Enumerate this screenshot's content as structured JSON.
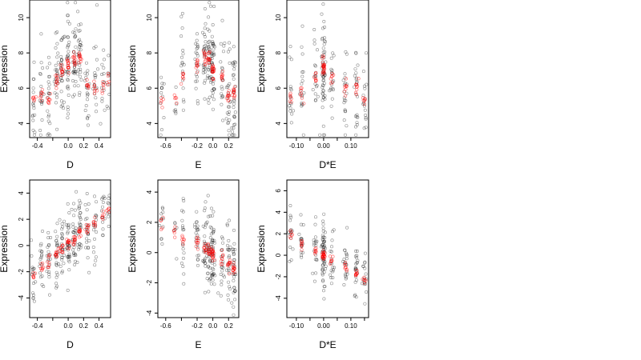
{
  "figure": {
    "panels": [
      {
        "id": "p1",
        "xlabel": "D",
        "ylabel": "Expression",
        "xlim": [
          -0.5,
          0.55
        ],
        "ylim": [
          3.2,
          11.0
        ],
        "xticks": [
          -0.4,
          -0.2,
          0.0,
          0.2,
          0.4
        ],
        "yticks": [
          4,
          6,
          8,
          10
        ],
        "xticklabels": [
          "-0.4",
          "",
          "0.0",
          "0.2",
          "0.4"
        ],
        "yticklabels": [
          "4",
          "6",
          "8",
          "10"
        ]
      },
      {
        "id": "p2",
        "xlabel": "E",
        "ylabel": "Expression",
        "xlim": [
          -0.7,
          0.33
        ],
        "ylim": [
          3.2,
          11.0
        ],
        "xticks": [
          -0.6,
          -0.4,
          -0.2,
          0.0,
          0.2
        ],
        "yticks": [
          4,
          6,
          8,
          10
        ],
        "xticklabels": [
          "-0.6",
          "",
          "-0.2",
          "0.0",
          "0.2"
        ],
        "yticklabels": [
          "4",
          "6",
          "8",
          "10"
        ]
      },
      {
        "id": "p3",
        "xlabel": "D*E",
        "ylabel": "Expression",
        "xlim": [
          -0.135,
          0.165
        ],
        "ylim": [
          3.2,
          11.0
        ],
        "xticks": [
          -0.1,
          -0.05,
          0.0,
          0.05,
          0.1
        ],
        "yticks": [
          4,
          6,
          8,
          10
        ],
        "xticklabels": [
          "-0.10",
          "",
          "0.00",
          "",
          "0.10"
        ],
        "yticklabels": [
          "4",
          "6",
          "8",
          "10"
        ]
      },
      {
        "id": "p4",
        "xlabel": "D",
        "ylabel": "Expression",
        "xlim": [
          -0.5,
          0.55
        ],
        "ylim": [
          -5.5,
          5.0
        ],
        "xticks": [
          -0.4,
          -0.2,
          0.0,
          0.2,
          0.4
        ],
        "yticks": [
          -4,
          -2,
          0,
          2,
          4
        ],
        "xticklabels": [
          "-0.4",
          "",
          "0.0",
          "0.2",
          "0.4"
        ],
        "yticklabels": [
          "-4",
          "-2",
          "0",
          "2",
          "4"
        ]
      },
      {
        "id": "p5",
        "xlabel": "E",
        "ylabel": "Expression",
        "xlim": [
          -0.7,
          0.33
        ],
        "ylim": [
          -4.3,
          4.8
        ],
        "xticks": [
          -0.6,
          -0.4,
          -0.2,
          0.0,
          0.2
        ],
        "yticks": [
          -4,
          -2,
          0,
          2,
          4
        ],
        "xticklabels": [
          "-0.6",
          "",
          "-0.2",
          "0.0",
          "0.2"
        ],
        "yticklabels": [
          "-4",
          "-2",
          "0",
          "2",
          "4"
        ]
      },
      {
        "id": "p6",
        "xlabel": "D*E",
        "ylabel": "Expression",
        "xlim": [
          -0.135,
          0.165
        ],
        "ylim": [
          -5.8,
          7.0
        ],
        "xticks": [
          -0.1,
          -0.05,
          0.0,
          0.05,
          0.1,
          0.15
        ],
        "yticks": [
          -4,
          -2,
          0,
          2,
          4,
          6
        ],
        "xticklabels": [
          "-0.10",
          "",
          "0.00",
          "",
          "0.10",
          ""
        ],
        "yticklabels": [
          "-4",
          "-2",
          "0",
          "2",
          "4",
          "6"
        ]
      }
    ]
  },
  "chart_data": [
    {
      "type": "scatter",
      "panel": "p1",
      "xlabel": "D",
      "ylabel": "Expression",
      "xlim": [
        -0.5,
        0.55
      ],
      "ylim": [
        3.2,
        11.0
      ],
      "colors": {
        "observed": "#000000",
        "fitted": "#ff0000"
      },
      "groups": [
        {
          "x": -0.45,
          "fit": 5.4,
          "sd": 1.3,
          "n": 16
        },
        {
          "x": -0.35,
          "fit": 5.5,
          "sd": 1.4,
          "n": 18
        },
        {
          "x": -0.25,
          "fit": 5.4,
          "sd": 1.5,
          "n": 20
        },
        {
          "x": -0.15,
          "fit": 6.5,
          "sd": 1.3,
          "n": 26
        },
        {
          "x": -0.08,
          "fit": 7.0,
          "sd": 1.3,
          "n": 28
        },
        {
          "x": 0.0,
          "fit": 7.3,
          "sd": 1.4,
          "n": 34
        },
        {
          "x": 0.08,
          "fit": 7.7,
          "sd": 1.3,
          "n": 30
        },
        {
          "x": 0.15,
          "fit": 7.8,
          "sd": 1.2,
          "n": 28
        },
        {
          "x": 0.25,
          "fit": 6.1,
          "sd": 1.3,
          "n": 20
        },
        {
          "x": 0.35,
          "fit": 6.0,
          "sd": 1.3,
          "n": 18
        },
        {
          "x": 0.45,
          "fit": 6.0,
          "sd": 1.2,
          "n": 14
        },
        {
          "x": 0.52,
          "fit": 6.5,
          "sd": 1.0,
          "n": 8
        }
      ]
    },
    {
      "type": "scatter",
      "panel": "p2",
      "xlabel": "E",
      "ylabel": "Expression",
      "xlim": [
        -0.7,
        0.33
      ],
      "ylim": [
        3.2,
        11.0
      ],
      "colors": {
        "observed": "#000000",
        "fitted": "#ff0000"
      },
      "groups": [
        {
          "x": -0.65,
          "fit": 5.2,
          "sd": 1.2,
          "n": 12
        },
        {
          "x": -0.48,
          "fit": 5.5,
          "sd": 1.0,
          "n": 6
        },
        {
          "x": -0.38,
          "fit": 6.8,
          "sd": 1.4,
          "n": 18
        },
        {
          "x": -0.2,
          "fit": 7.4,
          "sd": 1.2,
          "n": 22
        },
        {
          "x": -0.1,
          "fit": 7.8,
          "sd": 1.2,
          "n": 28
        },
        {
          "x": -0.05,
          "fit": 7.6,
          "sd": 1.3,
          "n": 30
        },
        {
          "x": 0.0,
          "fit": 7.0,
          "sd": 1.3,
          "n": 46
        },
        {
          "x": 0.12,
          "fit": 6.8,
          "sd": 1.3,
          "n": 20
        },
        {
          "x": 0.2,
          "fit": 5.6,
          "sd": 1.5,
          "n": 24
        },
        {
          "x": 0.27,
          "fit": 5.8,
          "sd": 1.4,
          "n": 30
        }
      ]
    },
    {
      "type": "scatter",
      "panel": "p3",
      "xlabel": "D*E",
      "ylabel": "Expression",
      "xlim": [
        -0.135,
        0.165
      ],
      "ylim": [
        3.2,
        11.0
      ],
      "colors": {
        "observed": "#000000",
        "fitted": "#ff0000"
      },
      "groups": [
        {
          "x": -0.12,
          "fit": 5.4,
          "sd": 1.2,
          "n": 16
        },
        {
          "x": -0.08,
          "fit": 5.5,
          "sd": 1.3,
          "n": 18
        },
        {
          "x": -0.03,
          "fit": 6.5,
          "sd": 1.3,
          "n": 18
        },
        {
          "x": 0.0,
          "fit": 7.3,
          "sd": 1.4,
          "n": 56
        },
        {
          "x": 0.03,
          "fit": 6.5,
          "sd": 1.3,
          "n": 18
        },
        {
          "x": 0.08,
          "fit": 6.0,
          "sd": 1.3,
          "n": 20
        },
        {
          "x": 0.12,
          "fit": 6.0,
          "sd": 1.4,
          "n": 22
        },
        {
          "x": 0.15,
          "fit": 5.3,
          "sd": 1.3,
          "n": 16
        }
      ]
    },
    {
      "type": "scatter",
      "panel": "p4",
      "xlabel": "D",
      "ylabel": "Expression",
      "xlim": [
        -0.5,
        0.55
      ],
      "ylim": [
        -5.5,
        5.0
      ],
      "colors": {
        "observed": "#000000",
        "fitted": "#ff0000"
      },
      "groups": [
        {
          "x": -0.45,
          "fit": -2.3,
          "sd": 1.3,
          "n": 16
        },
        {
          "x": -0.35,
          "fit": -1.6,
          "sd": 1.3,
          "n": 18
        },
        {
          "x": -0.25,
          "fit": -1.2,
          "sd": 1.3,
          "n": 20
        },
        {
          "x": -0.15,
          "fit": -0.7,
          "sd": 1.3,
          "n": 24
        },
        {
          "x": -0.08,
          "fit": -0.3,
          "sd": 1.3,
          "n": 26
        },
        {
          "x": 0.0,
          "fit": 0.1,
          "sd": 1.4,
          "n": 30
        },
        {
          "x": 0.08,
          "fit": 0.5,
          "sd": 1.3,
          "n": 28
        },
        {
          "x": 0.15,
          "fit": 0.9,
          "sd": 1.3,
          "n": 26
        },
        {
          "x": 0.25,
          "fit": 1.3,
          "sd": 1.3,
          "n": 22
        },
        {
          "x": 0.35,
          "fit": 1.8,
          "sd": 1.3,
          "n": 18
        },
        {
          "x": 0.45,
          "fit": 2.3,
          "sd": 1.3,
          "n": 14
        },
        {
          "x": 0.52,
          "fit": 2.7,
          "sd": 1.1,
          "n": 8
        }
      ]
    },
    {
      "type": "scatter",
      "panel": "p5",
      "xlabel": "E",
      "ylabel": "Expression",
      "xlim": [
        -0.7,
        0.33
      ],
      "ylim": [
        -4.3,
        4.8
      ],
      "colors": {
        "observed": "#000000",
        "fitted": "#ff0000"
      },
      "groups": [
        {
          "x": -0.65,
          "fit": 1.9,
          "sd": 1.2,
          "n": 12
        },
        {
          "x": -0.48,
          "fit": 1.4,
          "sd": 1.0,
          "n": 6
        },
        {
          "x": -0.38,
          "fit": 1.0,
          "sd": 1.3,
          "n": 18
        },
        {
          "x": -0.2,
          "fit": 0.6,
          "sd": 1.3,
          "n": 22
        },
        {
          "x": -0.1,
          "fit": 0.3,
          "sd": 1.3,
          "n": 26
        },
        {
          "x": -0.05,
          "fit": 0.1,
          "sd": 1.3,
          "n": 28
        },
        {
          "x": 0.0,
          "fit": -0.1,
          "sd": 1.4,
          "n": 46
        },
        {
          "x": 0.12,
          "fit": -0.4,
          "sd": 1.3,
          "n": 20
        },
        {
          "x": 0.2,
          "fit": -0.7,
          "sd": 1.4,
          "n": 24
        },
        {
          "x": 0.27,
          "fit": -1.0,
          "sd": 1.4,
          "n": 30
        }
      ]
    },
    {
      "type": "scatter",
      "panel": "p6",
      "xlabel": "D*E",
      "ylabel": "Expression",
      "xlim": [
        -0.135,
        0.165
      ],
      "ylim": [
        -5.8,
        7.0
      ],
      "colors": {
        "observed": "#000000",
        "fitted": "#ff0000"
      },
      "groups": [
        {
          "x": -0.12,
          "fit": 2.0,
          "sd": 1.2,
          "n": 16
        },
        {
          "x": -0.08,
          "fit": 1.1,
          "sd": 1.4,
          "n": 18
        },
        {
          "x": -0.03,
          "fit": 0.4,
          "sd": 1.3,
          "n": 18
        },
        {
          "x": 0.0,
          "fit": 0.0,
          "sd": 1.6,
          "n": 56
        },
        {
          "x": 0.03,
          "fit": -0.5,
          "sd": 1.3,
          "n": 18
        },
        {
          "x": 0.08,
          "fit": -1.2,
          "sd": 1.4,
          "n": 20
        },
        {
          "x": 0.12,
          "fit": -1.7,
          "sd": 1.4,
          "n": 22
        },
        {
          "x": 0.15,
          "fit": -2.1,
          "sd": 1.3,
          "n": 16
        }
      ]
    }
  ]
}
